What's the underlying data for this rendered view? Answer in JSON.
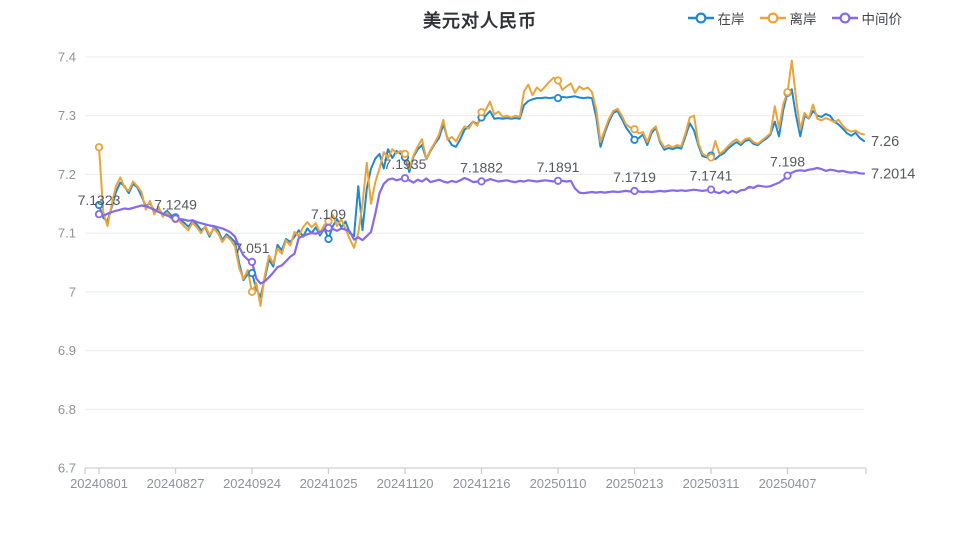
{
  "title": "美元对人民币",
  "legend": [
    {
      "id": "onshore",
      "label": "在岸",
      "color": "#1e88d2"
    },
    {
      "id": "offshore",
      "label": "离岸",
      "color": "#e9a43c"
    },
    {
      "id": "fixing",
      "label": "中间价",
      "color": "#8769ec"
    }
  ],
  "colors": {
    "grid": "#e8ecf1",
    "axis": "#ccd0d6",
    "axis_text": "#8e939c",
    "annotation_text": "#55595f"
  },
  "chart_data": {
    "type": "line",
    "title": "美元对人民币",
    "xlabel": "",
    "ylabel": "",
    "ylim": [
      6.7,
      7.4
    ],
    "grid": true,
    "legend_position": "top-right",
    "y_tick_labels": [
      "7.4",
      "7.3",
      "7.2",
      "7.1",
      "7",
      "6.9",
      "6.8",
      "6.7"
    ],
    "y_tick_values": [
      7.4,
      7.3,
      7.2,
      7.1,
      7.0,
      6.9,
      6.8,
      6.7
    ],
    "x_tick_labels": [
      "20240801",
      "20240827",
      "20240924",
      "20241025",
      "20241120",
      "20241216",
      "20250110",
      "20250213",
      "20250311",
      "20250407"
    ],
    "tick_indices": [
      0,
      18,
      36,
      54,
      72,
      90,
      108,
      126,
      144,
      162
    ],
    "series": [
      {
        "id": "onshore",
        "name": "在岸",
        "color": "#1e88d2",
        "width": 2,
        "values": [
          7.148,
          7.126,
          7.12,
          7.145,
          7.17,
          7.186,
          7.18,
          7.168,
          7.184,
          7.178,
          7.163,
          7.146,
          7.151,
          7.138,
          7.142,
          7.132,
          7.138,
          7.13,
          7.127,
          7.124,
          7.118,
          7.111,
          7.12,
          7.115,
          7.105,
          7.11,
          7.094,
          7.11,
          7.105,
          7.088,
          7.098,
          7.092,
          7.085,
          7.048,
          7.02,
          7.03,
          7.032,
          7.005,
          6.991,
          7.023,
          7.055,
          7.043,
          7.08,
          7.071,
          7.09,
          7.085,
          7.094,
          7.105,
          7.094,
          7.108,
          7.1,
          7.11,
          7.096,
          7.108,
          7.09,
          7.112,
          7.124,
          7.11,
          7.12,
          7.1,
          7.095,
          7.18,
          7.105,
          7.176,
          7.21,
          7.227,
          7.235,
          7.21,
          7.243,
          7.228,
          7.24,
          7.235,
          7.229,
          7.204,
          7.23,
          7.243,
          7.25,
          7.226,
          7.24,
          7.252,
          7.262,
          7.285,
          7.262,
          7.25,
          7.247,
          7.26,
          7.276,
          7.282,
          7.29,
          7.286,
          7.297,
          7.3,
          7.308,
          7.295,
          7.296,
          7.295,
          7.296,
          7.295,
          7.296,
          7.295,
          7.318,
          7.325,
          7.328,
          7.33,
          7.33,
          7.331,
          7.33,
          7.331,
          7.33,
          7.332,
          7.331,
          7.332,
          7.333,
          7.331,
          7.33,
          7.331,
          7.33,
          7.297,
          7.247,
          7.271,
          7.29,
          7.305,
          7.308,
          7.295,
          7.28,
          7.27,
          7.259,
          7.262,
          7.268,
          7.25,
          7.27,
          7.28,
          7.255,
          7.242,
          7.245,
          7.243,
          7.246,
          7.244,
          7.265,
          7.287,
          7.275,
          7.25,
          7.231,
          7.229,
          7.232,
          7.226,
          7.232,
          7.236,
          7.244,
          7.25,
          7.255,
          7.25,
          7.257,
          7.259,
          7.252,
          7.25,
          7.256,
          7.261,
          7.268,
          7.29,
          7.265,
          7.31,
          7.339,
          7.345,
          7.3,
          7.265,
          7.3,
          7.295,
          7.308,
          7.3,
          7.298,
          7.303,
          7.3,
          7.29,
          7.285,
          7.278,
          7.27,
          7.266,
          7.271,
          7.262,
          7.257
        ]
      },
      {
        "id": "offshore",
        "name": "离岸",
        "color": "#e9a43c",
        "width": 2,
        "values": [
          7.2464,
          7.135,
          7.112,
          7.15,
          7.18,
          7.195,
          7.178,
          7.172,
          7.188,
          7.18,
          7.17,
          7.14,
          7.155,
          7.132,
          7.145,
          7.128,
          7.135,
          7.125,
          7.124,
          7.12,
          7.112,
          7.105,
          7.118,
          7.11,
          7.1,
          7.112,
          7.097,
          7.108,
          7.1,
          7.085,
          7.095,
          7.088,
          7.077,
          7.04,
          7.022,
          7.037,
          7.0,
          7.015,
          6.976,
          7.028,
          7.062,
          7.048,
          7.074,
          7.065,
          7.088,
          7.079,
          7.102,
          7.095,
          7.11,
          7.119,
          7.11,
          7.117,
          7.1,
          7.114,
          7.12,
          7.131,
          7.112,
          7.124,
          7.107,
          7.09,
          7.075,
          7.1,
          7.15,
          7.22,
          7.15,
          7.187,
          7.21,
          7.238,
          7.228,
          7.243,
          7.236,
          7.24,
          7.235,
          7.21,
          7.232,
          7.248,
          7.26,
          7.226,
          7.242,
          7.254,
          7.268,
          7.293,
          7.259,
          7.264,
          7.256,
          7.27,
          7.282,
          7.278,
          7.29,
          7.283,
          7.306,
          7.31,
          7.324,
          7.302,
          7.307,
          7.298,
          7.3,
          7.297,
          7.3,
          7.298,
          7.341,
          7.353,
          7.335,
          7.348,
          7.342,
          7.35,
          7.358,
          7.365,
          7.36,
          7.344,
          7.35,
          7.355,
          7.339,
          7.35,
          7.345,
          7.348,
          7.34,
          7.31,
          7.255,
          7.276,
          7.295,
          7.308,
          7.312,
          7.3,
          7.285,
          7.28,
          7.277,
          7.27,
          7.272,
          7.255,
          7.275,
          7.282,
          7.258,
          7.246,
          7.25,
          7.246,
          7.25,
          7.248,
          7.27,
          7.297,
          7.3,
          7.254,
          7.235,
          7.231,
          7.229,
          7.257,
          7.235,
          7.24,
          7.248,
          7.255,
          7.26,
          7.253,
          7.26,
          7.262,
          7.255,
          7.252,
          7.258,
          7.264,
          7.27,
          7.316,
          7.279,
          7.32,
          7.34,
          7.394,
          7.33,
          7.276,
          7.305,
          7.295,
          7.319,
          7.295,
          7.292,
          7.296,
          7.293,
          7.289,
          7.293,
          7.283,
          7.276,
          7.273,
          7.275,
          7.27,
          7.268
        ]
      },
      {
        "id": "fixing",
        "name": "中间价",
        "color": "#8769ec",
        "width": 2.2,
        "values": [
          7.1323,
          7.13,
          7.133,
          7.136,
          7.138,
          7.14,
          7.142,
          7.141,
          7.143,
          7.145,
          7.147,
          7.146,
          7.143,
          7.14,
          7.136,
          7.133,
          7.13,
          7.127,
          7.1249,
          7.124,
          7.123,
          7.121,
          7.122,
          7.119,
          7.117,
          7.115,
          7.113,
          7.112,
          7.11,
          7.108,
          7.105,
          7.101,
          7.094,
          7.076,
          7.062,
          7.055,
          7.051,
          7.023,
          7.014,
          7.018,
          7.025,
          7.033,
          7.042,
          7.045,
          7.052,
          7.06,
          7.065,
          7.092,
          7.095,
          7.098,
          7.1,
          7.099,
          7.102,
          7.105,
          7.109,
          7.107,
          7.104,
          7.108,
          7.106,
          7.103,
          7.089,
          7.093,
          7.088,
          7.095,
          7.102,
          7.133,
          7.168,
          7.184,
          7.191,
          7.193,
          7.19,
          7.192,
          7.1935,
          7.19,
          7.186,
          7.191,
          7.188,
          7.193,
          7.187,
          7.189,
          7.191,
          7.188,
          7.186,
          7.189,
          7.187,
          7.19,
          7.194,
          7.191,
          7.187,
          7.188,
          7.1882,
          7.189,
          7.192,
          7.19,
          7.188,
          7.189,
          7.19,
          7.188,
          7.187,
          7.189,
          7.188,
          7.19,
          7.189,
          7.188,
          7.189,
          7.19,
          7.189,
          7.188,
          7.1891,
          7.189,
          7.188,
          7.189,
          7.176,
          7.169,
          7.168,
          7.169,
          7.17,
          7.169,
          7.17,
          7.169,
          7.17,
          7.171,
          7.17,
          7.171,
          7.172,
          7.171,
          7.1719,
          7.171,
          7.17,
          7.171,
          7.17,
          7.171,
          7.172,
          7.171,
          7.172,
          7.173,
          7.172,
          7.173,
          7.172,
          7.173,
          7.174,
          7.173,
          7.172,
          7.173,
          7.1741,
          7.17,
          7.168,
          7.172,
          7.168,
          7.172,
          7.169,
          7.173,
          7.174,
          7.179,
          7.177,
          7.181,
          7.18,
          7.179,
          7.18,
          7.183,
          7.186,
          7.191,
          7.198,
          7.203,
          7.206,
          7.207,
          7.206,
          7.208,
          7.209,
          7.211,
          7.209,
          7.206,
          7.208,
          7.207,
          7.205,
          7.206,
          7.204,
          7.203,
          7.204,
          7.202,
          7.2014
        ]
      }
    ],
    "marked_series_indices": [
      0,
      18,
      36,
      54,
      72,
      90,
      108,
      126,
      144,
      162
    ],
    "annotations": [
      {
        "index": 0,
        "series": "fixing",
        "text": "7.1323"
      },
      {
        "index": 18,
        "series": "fixing",
        "text": "7.1249"
      },
      {
        "index": 36,
        "series": "fixing",
        "text": "7.051"
      },
      {
        "index": 54,
        "series": "fixing",
        "text": "7.109"
      },
      {
        "index": 72,
        "series": "fixing",
        "text": "7.1935"
      },
      {
        "index": 90,
        "series": "fixing",
        "text": "7.1882"
      },
      {
        "index": 108,
        "series": "fixing",
        "text": "7.1891"
      },
      {
        "index": 126,
        "series": "fixing",
        "text": "7.1719"
      },
      {
        "index": 144,
        "series": "fixing",
        "text": "7.1741"
      },
      {
        "index": 162,
        "series": "fixing",
        "text": "7.198"
      }
    ],
    "end_labels": [
      {
        "series": "onshore",
        "text": "7.26"
      },
      {
        "series": "fixing",
        "text": "7.2014"
      }
    ]
  }
}
